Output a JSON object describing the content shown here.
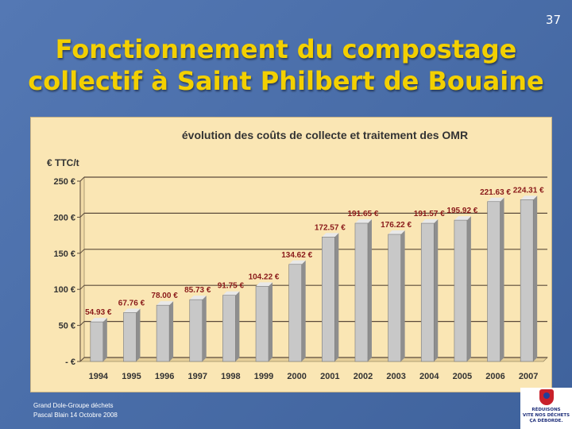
{
  "page_number": "37",
  "title_line1": "Fonctionnement du compostage",
  "title_line2": "collectif à Saint Philbert de Bouaine",
  "footer": {
    "line1": "Grand Dole-Groupe déchets",
    "line2": "Pascal Blain 14 Octobre 2008"
  },
  "logo_text": "RÉDUISONS\nVITE NOS DÉCHETS\nÇA DÉBORDE.",
  "colors": {
    "bar_fill": "#c8c8c8",
    "chart_background": "#fae6b4",
    "title": "#f3d000",
    "label_text": "#8a1a1a"
  },
  "chart_data": {
    "type": "bar",
    "title": "évolution des coûts de collecte et traitement des OMR",
    "ylabel": "€ TTC/t",
    "ylim": [
      0,
      250
    ],
    "ytick_values": [
      0,
      50,
      100,
      150,
      200,
      250
    ],
    "ytick_labels": [
      "- €",
      "50 €",
      "100 €",
      "150 €",
      "200 €",
      "250 €"
    ],
    "categories": [
      "1994",
      "1995",
      "1996",
      "1997",
      "1998",
      "1999",
      "2000",
      "2001",
      "2002",
      "2003",
      "2004",
      "2005",
      "2006",
      "2007"
    ],
    "values": [
      54.93,
      67.76,
      78.0,
      85.73,
      91.75,
      104.22,
      134.62,
      172.57,
      191.65,
      176.22,
      191.57,
      195.92,
      221.63,
      224.31
    ],
    "value_labels": [
      "54.93 €",
      "67.76 €",
      "78.00 €",
      "85.73 €",
      "91.75 €",
      "104.22 €",
      "134.62 €",
      "172.57 €",
      "191.65 €",
      "176.22 €",
      "191.57 €",
      "195.92 €",
      "221.63 €",
      "224.31 €"
    ],
    "grid": true
  }
}
